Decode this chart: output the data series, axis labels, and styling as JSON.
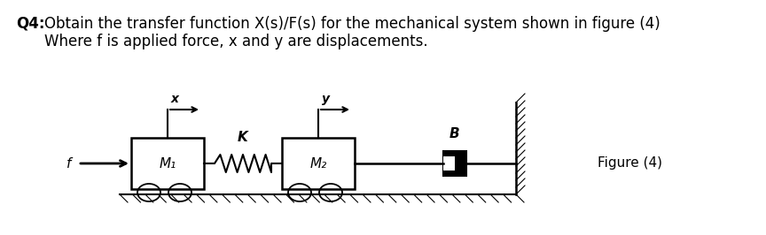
{
  "title_q4_bold": "Q4:",
  "title_rest": " Obtain the transfer function X(s)/F(s) for the mechanical system shown in figure (4)",
  "title_line2": "Where f is applied force, x and y are displacements.",
  "figure_label": "Figure (4)",
  "bg_color": "#ffffff",
  "M1_label": "M₁",
  "M2_label": "M₂",
  "K_label": "K",
  "B_label": "B",
  "f_label": "f",
  "x_label": "x",
  "y_label": "y",
  "fontsize_title": 12,
  "fontsize_diagram": 11
}
